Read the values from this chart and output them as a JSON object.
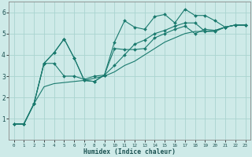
{
  "xlabel": "Humidex (Indice chaleur)",
  "bg_color": "#ceeae8",
  "grid_color": "#aad4d0",
  "line_color": "#1a7a6e",
  "xlim": [
    -0.5,
    23.5
  ],
  "ylim": [
    0,
    6.5
  ],
  "xticks": [
    0,
    1,
    2,
    3,
    4,
    5,
    6,
    7,
    8,
    9,
    10,
    11,
    12,
    13,
    14,
    15,
    16,
    17,
    18,
    19,
    20,
    21,
    22,
    23
  ],
  "yticks": [
    1,
    2,
    3,
    4,
    5,
    6
  ],
  "series": [
    [
      0.75,
      0.75,
      1.7,
      3.6,
      4.1,
      4.75,
      3.85,
      2.8,
      2.75,
      3.05,
      4.6,
      5.6,
      5.3,
      5.2,
      5.8,
      5.9,
      5.5,
      6.15,
      5.85,
      5.85,
      5.6,
      5.3,
      5.4,
      5.4
    ],
    [
      0.75,
      0.75,
      1.7,
      3.6,
      4.1,
      4.75,
      3.85,
      2.8,
      2.75,
      3.05,
      4.3,
      4.25,
      4.25,
      4.3,
      4.8,
      5.0,
      5.2,
      5.35,
      5.0,
      5.2,
      5.15,
      5.3,
      5.4,
      5.4
    ],
    [
      0.75,
      0.75,
      1.7,
      3.6,
      3.6,
      3.0,
      3.0,
      2.85,
      3.0,
      3.05,
      3.5,
      4.0,
      4.5,
      4.7,
      5.0,
      5.15,
      5.35,
      5.5,
      5.5,
      5.1,
      5.1,
      5.3,
      5.4,
      5.4
    ],
    [
      0.75,
      0.75,
      1.7,
      2.5,
      2.65,
      2.7,
      2.75,
      2.8,
      2.9,
      3.0,
      3.2,
      3.5,
      3.7,
      4.0,
      4.3,
      4.6,
      4.8,
      5.0,
      5.1,
      5.1,
      5.15,
      5.3,
      5.4,
      5.4
    ]
  ],
  "markers": [
    true,
    true,
    true,
    false
  ]
}
